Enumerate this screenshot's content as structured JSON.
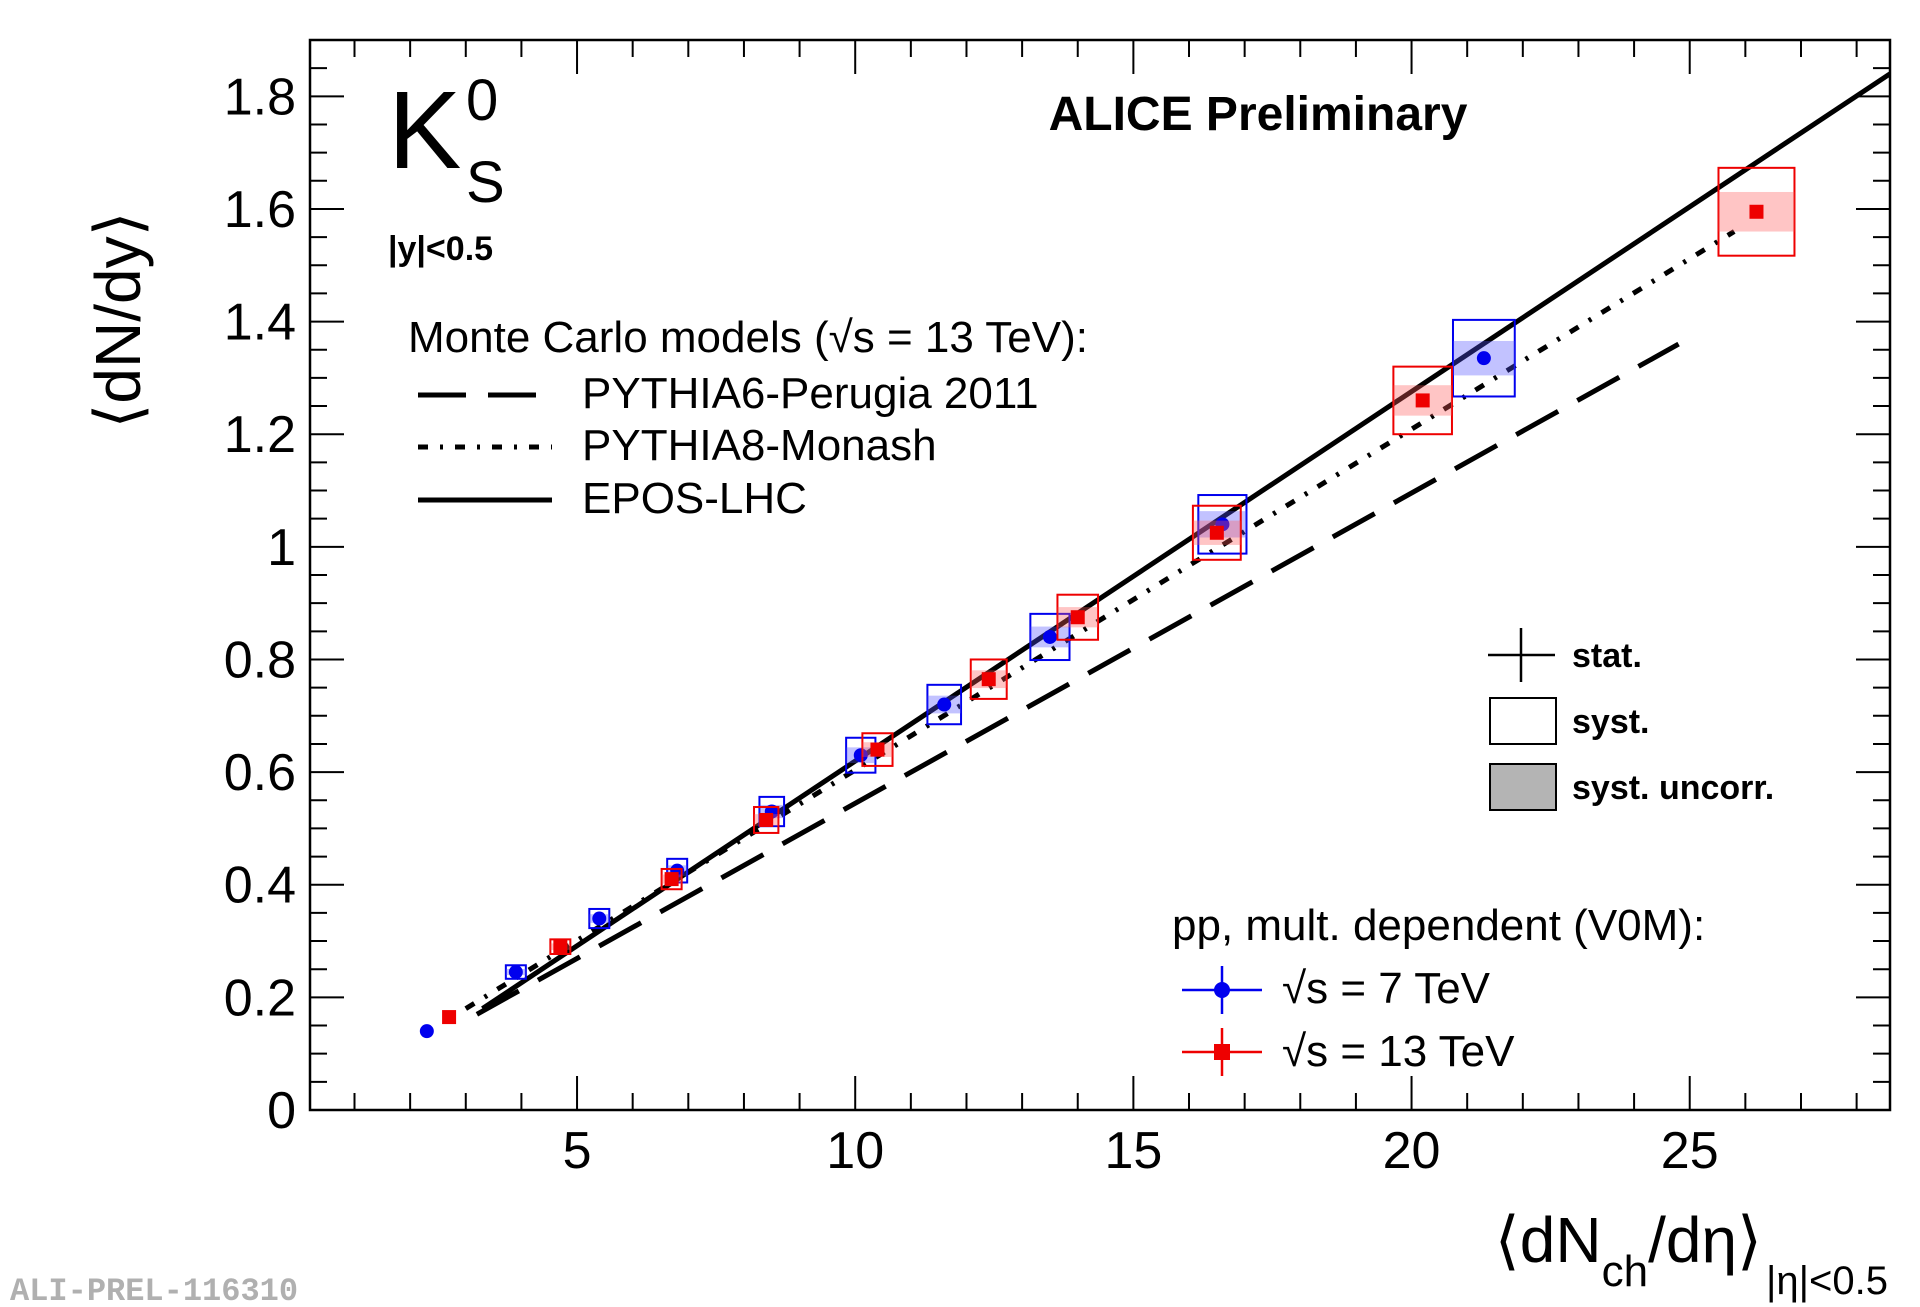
{
  "chart_data": {
    "type": "scatter",
    "watermark": "ALICE Preliminary",
    "particle_main": "K",
    "particle_sup": "0",
    "particle_sub": "S",
    "rapidity_label": "|y|<0.5",
    "ylabel": "⟨dN/dy⟩",
    "xlabel_main": "⟨dN",
    "xlabel_sub": "ch",
    "xlabel_tail": "/dη⟩",
    "xlabel_cond": "|η|<0.5",
    "xlim": [
      0.2,
      28.6
    ],
    "ylim": [
      0,
      1.9
    ],
    "x_ticks": [
      5,
      10,
      15,
      20,
      25
    ],
    "x_tick_labels": [
      "5",
      "10",
      "15",
      "20",
      "25"
    ],
    "y_ticks": [
      0,
      0.2,
      0.4,
      0.6,
      0.8,
      1,
      1.2,
      1.4,
      1.6,
      1.8
    ],
    "y_tick_labels": [
      "0",
      "0.2",
      "0.4",
      "0.6",
      "0.8",
      "1",
      "1.2",
      "1.4",
      "1.6",
      "1.8"
    ],
    "models_title": "Monte Carlo models (√s = 13 TeV):",
    "models": [
      {
        "name": "PYTHIA6-Perugia 2011",
        "style": "dashed",
        "x": [
          3.2,
          24.8
        ],
        "y": [
          0.17,
          1.36
        ]
      },
      {
        "name": "PYTHIA8-Monash",
        "style": "dash-dot",
        "x": [
          3.0,
          25.8
        ],
        "y": [
          0.18,
          1.56
        ]
      },
      {
        "name": "EPOS-LHC",
        "style": "solid",
        "x": [
          3.3,
          28.6
        ],
        "y": [
          0.18,
          1.84
        ]
      }
    ],
    "uncertainty_legend": {
      "stat": "stat.",
      "syst": "syst.",
      "syst_uncorr": "syst. uncorr."
    },
    "data_legend_title": "pp, mult. dependent (V0M):",
    "series": [
      {
        "name": "√s = 7 TeV",
        "color": "#0000ee",
        "marker": "circle",
        "x": [
          2.3,
          3.9,
          5.4,
          6.8,
          8.5,
          10.1,
          11.6,
          13.5,
          16.6,
          21.3
        ],
        "y": [
          0.14,
          0.245,
          0.34,
          0.425,
          0.53,
          0.63,
          0.72,
          0.84,
          1.04,
          1.335
        ],
        "syst": [
          0.006,
          0.012,
          0.017,
          0.021,
          0.026,
          0.031,
          0.035,
          0.041,
          0.052,
          0.068
        ]
      },
      {
        "name": "√s = 13 TeV",
        "color": "#ee0000",
        "marker": "square",
        "x": [
          2.7,
          4.7,
          6.7,
          8.4,
          10.4,
          12.4,
          14.0,
          16.5,
          20.2,
          26.2
        ],
        "y": [
          0.165,
          0.29,
          0.41,
          0.515,
          0.64,
          0.765,
          0.875,
          1.025,
          1.26,
          1.595
        ],
        "syst": [
          0.007,
          0.013,
          0.018,
          0.023,
          0.029,
          0.035,
          0.04,
          0.048,
          0.06,
          0.078
        ]
      }
    ],
    "footer_id": "ALI-PREL-116310"
  }
}
